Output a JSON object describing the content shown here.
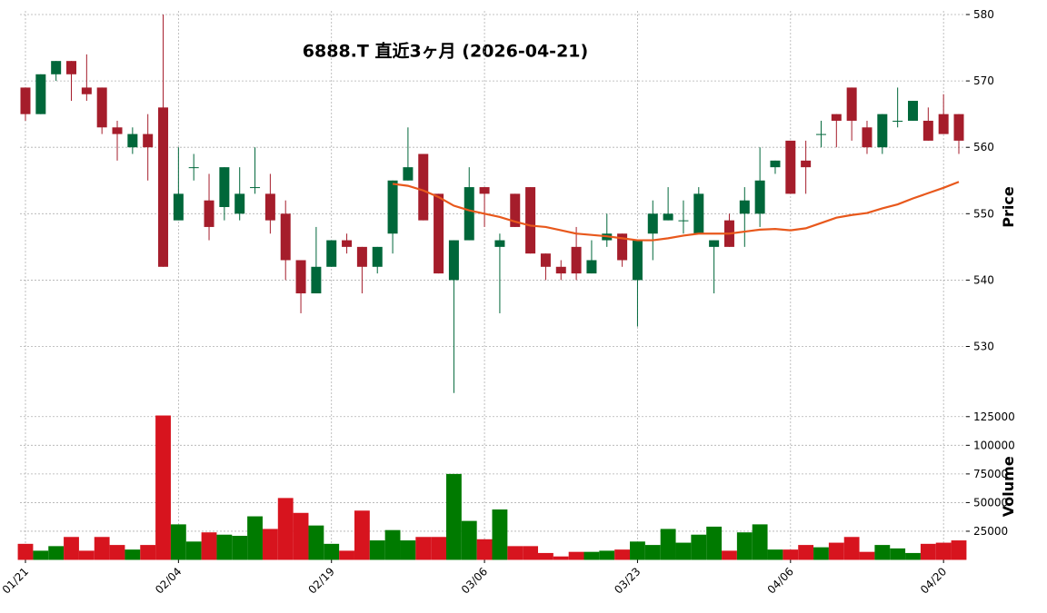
{
  "chart_data": [
    {
      "type": "candlestick",
      "title": "6888.T  直近3ヶ月  (2026-04-21)",
      "y_label": "Price",
      "categories": [
        "01/21",
        null,
        null,
        null,
        null,
        null,
        null,
        null,
        null,
        null,
        "02/04",
        null,
        null,
        null,
        null,
        null,
        null,
        null,
        null,
        null,
        "02/19",
        null,
        null,
        null,
        null,
        null,
        null,
        null,
        null,
        null,
        "03/06",
        null,
        null,
        null,
        null,
        null,
        null,
        null,
        null,
        null,
        "03/23",
        null,
        null,
        null,
        null,
        null,
        null,
        null,
        null,
        null,
        "04/06",
        null,
        null,
        null,
        null,
        null,
        null,
        null,
        null,
        null,
        "04/20",
        null
      ],
      "up_color": "#00673a",
      "down_color": "#a51d2b",
      "open": [
        569,
        565,
        571,
        573,
        569,
        569,
        563,
        560,
        562,
        566,
        549,
        557,
        552,
        551,
        550,
        554,
        553,
        550,
        543,
        538,
        542,
        546,
        545,
        542,
        547,
        555,
        559,
        553,
        540,
        546,
        554,
        545,
        553,
        554,
        544,
        542,
        545,
        541,
        546,
        547,
        540,
        547,
        549,
        549,
        547,
        545,
        549,
        550,
        550,
        557,
        561,
        558,
        562,
        565,
        569,
        563,
        560,
        564,
        564,
        564,
        565,
        565
      ],
      "high": [
        569,
        571,
        573,
        573,
        574,
        569,
        564,
        563,
        565,
        580,
        560,
        559,
        556,
        557,
        557,
        560,
        556,
        552,
        543,
        548,
        546,
        547,
        545,
        545,
        555,
        563,
        559,
        553,
        546,
        557,
        554,
        547,
        553,
        554,
        544,
        543,
        548,
        546,
        550,
        547,
        546,
        552,
        554,
        552,
        554,
        546,
        550,
        554,
        560,
        558,
        561,
        561,
        564,
        565,
        569,
        564,
        565,
        569,
        567,
        566,
        568,
        565
      ],
      "low": [
        564,
        565,
        570,
        567,
        567,
        562,
        558,
        559,
        555,
        542,
        549,
        555,
        546,
        549,
        549,
        553,
        547,
        540,
        535,
        538,
        542,
        544,
        538,
        541,
        544,
        555,
        549,
        541,
        523,
        546,
        548,
        535,
        548,
        544,
        540,
        540,
        540,
        541,
        545,
        542,
        533,
        543,
        549,
        547,
        547,
        538,
        545,
        545,
        548,
        556,
        553,
        553,
        560,
        560,
        561,
        559,
        559,
        563,
        564,
        561,
        562,
        559
      ],
      "close": [
        565,
        571,
        573,
        571,
        568,
        563,
        562,
        562,
        560,
        542,
        553,
        557,
        548,
        557,
        553,
        554,
        549,
        543,
        538,
        542,
        546,
        545,
        542,
        545,
        555,
        557,
        549,
        541,
        546,
        554,
        553,
        546,
        548,
        544,
        542,
        541,
        541,
        543,
        547,
        543,
        546,
        550,
        550,
        549,
        553,
        546,
        545,
        552,
        555,
        558,
        553,
        557,
        562,
        564,
        564,
        560,
        565,
        564,
        567,
        561,
        562,
        561
      ],
      "series": [
        {
          "name": "MA",
          "color": "#e8581c",
          "values": [
            null,
            null,
            null,
            null,
            null,
            null,
            null,
            null,
            null,
            null,
            null,
            null,
            null,
            null,
            null,
            null,
            null,
            null,
            null,
            null,
            null,
            null,
            null,
            null,
            554.5,
            554.2,
            553.5,
            552.5,
            551.2,
            550.5,
            550,
            549.5,
            548.8,
            548.2,
            548,
            547.5,
            547,
            546.8,
            546.6,
            546.3,
            546,
            546,
            546.3,
            546.7,
            547,
            547,
            547,
            547.3,
            547.6,
            547.7,
            547.5,
            547.8,
            548.6,
            549.4,
            549.8,
            550.1,
            550.8,
            551.4,
            552.3,
            553.1,
            553.9,
            554.8
          ]
        }
      ],
      "ylim": [
        522,
        580
      ],
      "yticks": [
        530,
        540,
        550,
        560,
        570,
        580
      ],
      "grid": true
    },
    {
      "type": "volume",
      "y_label": "Volume",
      "up_color": "#007a00",
      "down_color": "#d7141e",
      "values": [
        14000,
        8000,
        12000,
        20000,
        8000,
        20000,
        13000,
        9000,
        13000,
        126000,
        31000,
        16000,
        24000,
        22000,
        21000,
        38000,
        27000,
        54000,
        41000,
        30000,
        14000,
        8000,
        43000,
        17000,
        26000,
        17000,
        20000,
        20000,
        75000,
        34000,
        18000,
        44000,
        12000,
        12000,
        6000,
        3000,
        7000,
        7000,
        8000,
        9000,
        16000,
        13000,
        27000,
        15000,
        22000,
        29000,
        8000,
        24000,
        31000,
        9000,
        9000,
        13000,
        11000,
        15000,
        20000,
        7000,
        13000,
        10000,
        6000,
        14000,
        15000,
        17000
      ],
      "ylim": [
        0,
        128000
      ],
      "yticks": [
        25000,
        50000,
        75000,
        {
          "value": 100000,
          "label": "100000"
        },
        {
          "value": 125000,
          "label": "125000"
        }
      ],
      "grid": true
    }
  ]
}
